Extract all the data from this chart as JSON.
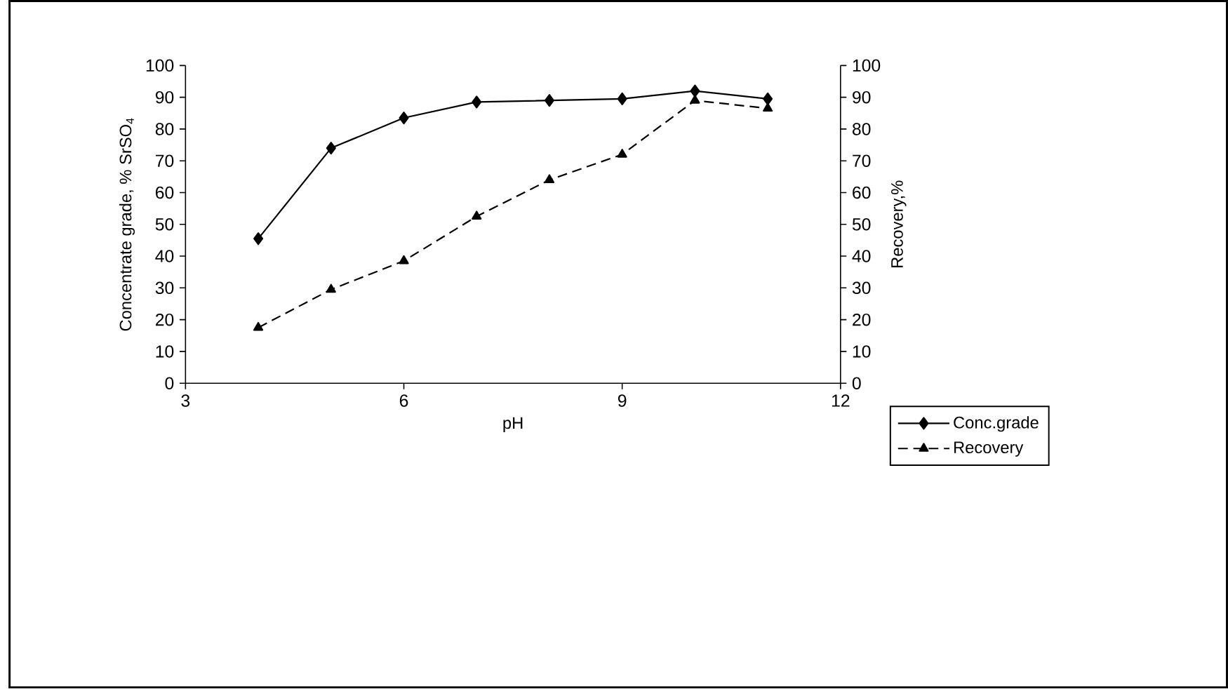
{
  "chart_data": {
    "type": "line",
    "xlabel": "pH",
    "ylabel": "Concentrate grade, % SrSO$_{4}$",
    "y2label": "Recovery,%",
    "x": [
      4,
      5,
      6,
      7,
      8,
      9,
      10,
      11
    ],
    "series": [
      {
        "name": "Conc.grade",
        "color": "#000000",
        "marker": "diamond",
        "line_style": "solid",
        "values": [
          45.5,
          74,
          83.5,
          88.5,
          89,
          89.5,
          92,
          89.5
        ]
      },
      {
        "name": "Recovery",
        "color": "#000000",
        "marker": "triangle",
        "line_style": "dashed",
        "axis": "y2",
        "values": [
          17.5,
          29.5,
          38.5,
          52.5,
          64,
          72,
          89,
          86.5
        ]
      }
    ],
    "xlim": [
      3,
      12
    ],
    "xticks": [
      3,
      6,
      9,
      12
    ],
    "ylim": [
      0,
      100
    ],
    "yticks": [
      0,
      10,
      20,
      30,
      40,
      50,
      60,
      70,
      80,
      90,
      100
    ],
    "y2lim": [
      0,
      100
    ],
    "y2ticks": [
      0,
      10,
      20,
      30,
      40,
      50,
      60,
      70,
      80,
      90,
      100
    ],
    "grid": false,
    "legend": "bottom right"
  }
}
